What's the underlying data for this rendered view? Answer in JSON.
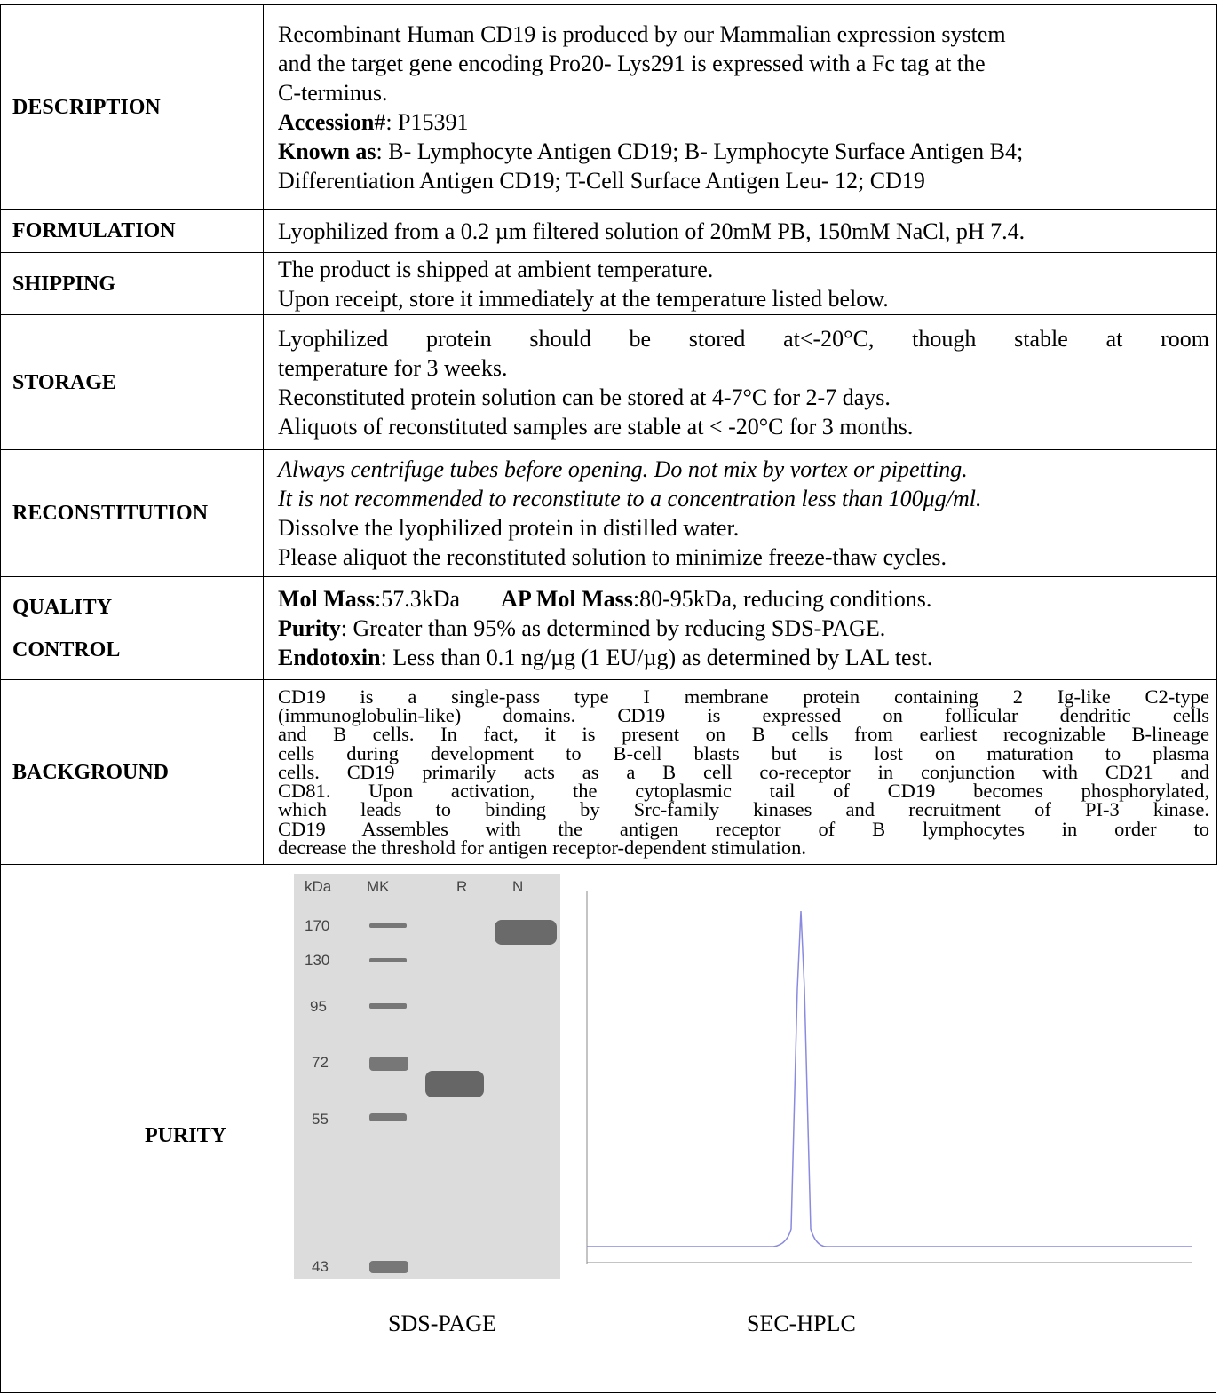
{
  "table": {
    "rows": [
      {
        "label": [
          "DESCRIPTION"
        ],
        "lines": [
          [
            {
              "text": "Recombinant Human CD19 is produced by our Mammalian expression system"
            }
          ],
          [
            {
              "text": "and the target gene encoding Pro20- Lys291 is expressed with a Fc tag at the"
            }
          ],
          [
            {
              "text": "C-terminus."
            }
          ],
          [
            {
              "text": "Accession",
              "style": "bold"
            },
            {
              "text": "#: P15391"
            }
          ],
          [
            {
              "text": "Known as",
              "style": "bold"
            },
            {
              "text": ": B- Lymphocyte Antigen CD19; B- Lymphocyte Surface Antigen B4;"
            }
          ],
          [
            {
              "text": "Differentiation Antigen CD19; T-Cell Surface Antigen Leu- 12; CD19"
            }
          ]
        ]
      },
      {
        "label": [
          "FORMULATION"
        ],
        "lines": [
          [
            {
              "text": "Lyophilized from a 0.2 µm filtered solution of 20mM PB, 150mM NaCl, pH 7.4."
            }
          ]
        ]
      },
      {
        "label": [
          "SHIPPING"
        ],
        "lines": [
          [
            {
              "text": "The product is shipped at ambient temperature."
            }
          ],
          [
            {
              "text": "Upon receipt, store it immediately at the temperature listed below."
            }
          ]
        ]
      },
      {
        "label": [
          "STORAGE"
        ],
        "lines": [
          [
            {
              "text": "Lyophilized protein should be stored at<-20°C, though stable at room"
            }
          ],
          [
            {
              "text": "temperature for 3 weeks."
            }
          ],
          [
            {
              "text": "Reconstituted protein solution can be stored at 4-7°C for 2-7 days."
            }
          ],
          [
            {
              "text": "Aliquots of reconstituted samples are stable at < -20°C for 3 months."
            }
          ]
        ]
      },
      {
        "label": [
          "RECONSTITUTION"
        ],
        "lines": [
          [
            {
              "text": "Always centrifuge tubes before opening. Do not mix by vortex or pipetting.",
              "style": "italic"
            }
          ],
          [
            {
              "text": "It is not recommended to reconstitute to a concentration less than 100μg/ml.",
              "style": "italic"
            }
          ],
          [
            {
              "text": "Dissolve the lyophilized protein in distilled water."
            }
          ],
          [
            {
              "text": "Please aliquot the reconstituted solution to minimize freeze-thaw cycles."
            }
          ]
        ]
      },
      {
        "label": [
          "QUALITY",
          "CONTROL"
        ],
        "lines": [
          [
            {
              "text": "Mol Mass",
              "style": "bold"
            },
            {
              "text": ":57.3kDa"
            },
            {
              "text": "AP Mol Mass",
              "style": "bold"
            },
            {
              "text": ":80-95kDa, reducing conditions."
            }
          ],
          [
            {
              "text": "Purity",
              "style": "bold"
            },
            {
              "text": ": Greater than 95% as determined by reducing SDS-PAGE."
            }
          ],
          [
            {
              "text": "Endotoxin",
              "style": "bold"
            },
            {
              "text": ": Less than 0.1 ng/µg (1 EU/µg) as determined by LAL test."
            }
          ]
        ]
      },
      {
        "label": [
          "BACKGROUND"
        ],
        "lines": [
          [
            {
              "text": "CD19 is a single-pass type I membrane protein containing 2 Ig-like C2-type"
            }
          ],
          [
            {
              "text": "(immunoglobulin-like) domains. CD19 is expressed on follicular dendritic cells"
            }
          ],
          [
            {
              "text": "and B cells. In fact, it is present on B cells from earliest recognizable B-lineage"
            }
          ],
          [
            {
              "text": "cells during development to B-cell blasts but is lost on maturation to plasma"
            }
          ],
          [
            {
              "text": "cells. CD19 primarily acts as a B cell co-receptor in conjunction with CD21 and"
            }
          ],
          [
            {
              "text": "CD81. Upon activation, the cytoplasmic tail of CD19 becomes phosphorylated,"
            }
          ],
          [
            {
              "text": "which leads to binding by Src-family kinases and recruitment of PI-3 kinase."
            }
          ],
          [
            {
              "text": "CD19 Assembles with the antigen receptor of B lymphocytes in order to"
            }
          ],
          [
            {
              "text": "decrease the threshold for antigen receptor-dependent stimulation."
            }
          ]
        ]
      }
    ]
  },
  "purity": {
    "label": "PURITY",
    "gel": {
      "header": [
        "kDa",
        "MK",
        "R",
        "N"
      ],
      "markers": [
        170,
        130,
        95,
        72,
        55,
        43
      ]
    },
    "captions": [
      "SDS-PAGE",
      "SEC-HPLC"
    ]
  }
}
